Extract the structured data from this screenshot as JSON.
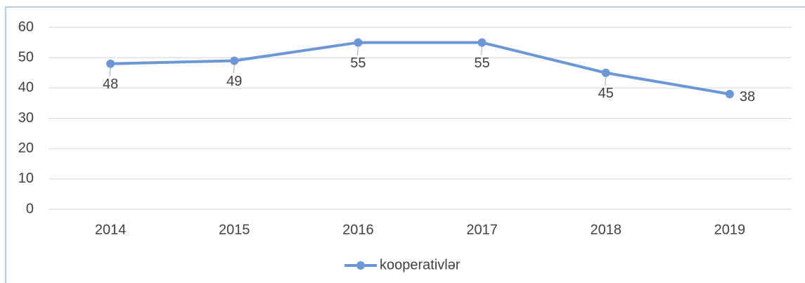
{
  "chart_data": {
    "type": "line",
    "categories": [
      "2014",
      "2015",
      "2016",
      "2017",
      "2018",
      "2019"
    ],
    "series": [
      {
        "name": "kooperativlər",
        "color": "#6b98d4",
        "values": [
          48,
          49,
          55,
          55,
          45,
          38
        ]
      }
    ],
    "ylim": [
      0,
      60
    ],
    "yticks": [
      0,
      10,
      20,
      30,
      40,
      50,
      60
    ],
    "grid": true,
    "legend": "bottom",
    "data_labels": true
  }
}
